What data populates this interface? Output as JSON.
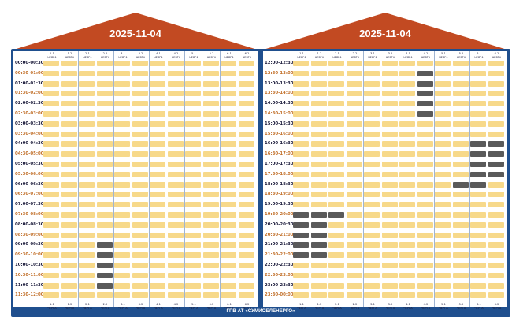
{
  "schedules": [
    {
      "date": "2025-11-04",
      "groups": [
        {
          "num": "1.1",
          "word": "ЧЕРГА"
        },
        {
          "num": "1.2",
          "word": "ЧЕРГА"
        },
        {
          "num": "2.1",
          "word": "ЧЕРГА"
        },
        {
          "num": "2.2",
          "word": "ЧЕРГА"
        },
        {
          "num": "3.1",
          "word": "ЧЕРГА"
        },
        {
          "num": "3.2",
          "word": "ЧЕРГА"
        },
        {
          "num": "4.1",
          "word": "ЧЕРГА"
        },
        {
          "num": "4.2",
          "word": "ЧЕРГА"
        },
        {
          "num": "5.1",
          "word": "ЧЕРГА"
        },
        {
          "num": "5.2",
          "word": "ЧЕРГА"
        },
        {
          "num": "6.1",
          "word": "ЧЕРГА"
        },
        {
          "num": "6.2",
          "word": "ЧЕРГА"
        }
      ],
      "slots": [
        "00:00-00:30",
        "00:30-01:00",
        "01:00-01:30",
        "01:30-02:00",
        "02:00-02:30",
        "02:30-03:00",
        "03:00-03:30",
        "03:30-04:00",
        "04:00-04:30",
        "04:30-05:00",
        "05:00-05:30",
        "05:30-06:00",
        "06:00-06:30",
        "06:30-07:00",
        "07:00-07:30",
        "07:30-08:00",
        "08:00-08:30",
        "08:30-09:00",
        "09:00-09:30",
        "09:30-10:00",
        "10:00-10:30",
        "10:30-11:00",
        "11:00-11:30",
        "11:30-12:00"
      ],
      "outages": [
        {
          "group": 3,
          "slots": [
            18,
            19,
            20,
            21,
            22
          ]
        }
      ]
    },
    {
      "date": "2025-11-04",
      "groups": [
        {
          "num": "1.1",
          "word": "ЧЕРГА"
        },
        {
          "num": "1.2",
          "word": "ЧЕРГА"
        },
        {
          "num": "2.1",
          "word": "ЧЕРГА"
        },
        {
          "num": "2.2",
          "word": "ЧЕРГА"
        },
        {
          "num": "3.1",
          "word": "ЧЕРГА"
        },
        {
          "num": "3.2",
          "word": "ЧЕРГА"
        },
        {
          "num": "4.1",
          "word": "ЧЕРГА"
        },
        {
          "num": "4.2",
          "word": "ЧЕРГА"
        },
        {
          "num": "5.1",
          "word": "ЧЕРГА"
        },
        {
          "num": "5.2",
          "word": "ЧЕРГА"
        },
        {
          "num": "6.1",
          "word": "ЧЕРГА"
        },
        {
          "num": "6.2",
          "word": "ЧЕРГА"
        }
      ],
      "slots": [
        "12:00-12:30",
        "12:30-13:00",
        "13:00-13:30",
        "13:30-14:00",
        "14:00-14:30",
        "14:30-15:00",
        "15:00-15:30",
        "15:30-16:00",
        "16:00-16:30",
        "16:30-17:00",
        "17:00-17:30",
        "17:30-18:00",
        "18:00-18:30",
        "18:30-19:00",
        "19:00-19:30",
        "19:30-20:00",
        "20:00-20:30",
        "20:30-21:00",
        "21:00-21:30",
        "21:30-22:00",
        "22:00-22:30",
        "22:30-23:00",
        "23:00-23:30",
        "23:30-00:00"
      ],
      "outages": [
        {
          "group": 0,
          "slots": [
            15,
            16,
            17,
            18,
            19
          ]
        },
        {
          "group": 1,
          "slots": [
            15,
            16,
            17,
            18,
            19
          ]
        },
        {
          "group": 2,
          "slots": [
            15
          ]
        },
        {
          "group": 7,
          "slots": [
            1,
            2,
            3,
            4,
            5
          ]
        },
        {
          "group": 9,
          "slots": [
            12
          ]
        },
        {
          "group": 10,
          "slots": [
            8,
            9,
            10,
            11,
            12
          ]
        },
        {
          "group": 11,
          "slots": [
            8,
            9,
            10,
            11
          ]
        }
      ]
    }
  ],
  "footer": "ГПВ АТ «СУМИОБЛЕНЕРГО»",
  "colors": {
    "roof": "#c24a22",
    "frame": "#1f4f8e",
    "power_on": "#f7d98a",
    "power_off": "#5a5a5a",
    "hour_label": "#1a1a3a",
    "half_hour_label": "#c2702a"
  }
}
